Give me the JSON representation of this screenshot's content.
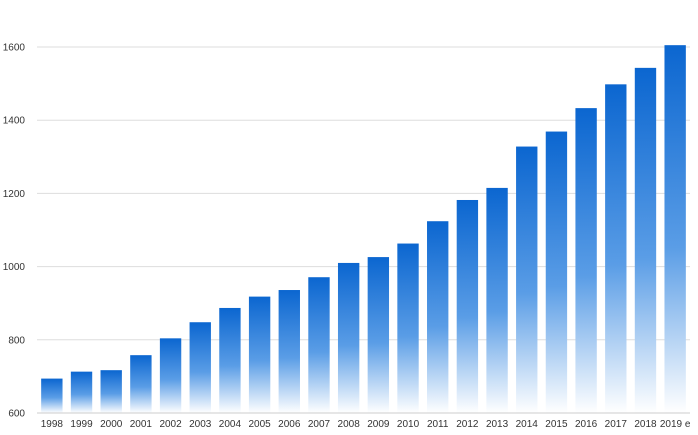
{
  "chart_data": {
    "type": "bar",
    "title": "",
    "xlabel": "",
    "ylabel": "",
    "ylim": [
      600,
      1600
    ],
    "yticks": [
      600,
      800,
      1000,
      1200,
      1400,
      1600
    ],
    "grid": true,
    "categories": [
      "1998",
      "1999",
      "2000",
      "2001",
      "2002",
      "2003",
      "2004",
      "2005",
      "2006",
      "2007",
      "2008",
      "2009",
      "2010",
      "2011",
      "2012",
      "2013",
      "2014",
      "2015",
      "2016",
      "2017",
      "2018",
      "2019 e"
    ],
    "values": [
      694,
      713,
      717,
      758,
      804,
      848,
      887,
      918,
      936,
      971,
      1010,
      1026,
      1063,
      1124,
      1182,
      1215,
      1328,
      1369,
      1433,
      1498,
      1543,
      1605
    ],
    "colors": {
      "bar_top": "#0b66d0",
      "bar_bottom": "#ffffff",
      "grid": "#dddddd",
      "axis": "#cccccc"
    }
  }
}
